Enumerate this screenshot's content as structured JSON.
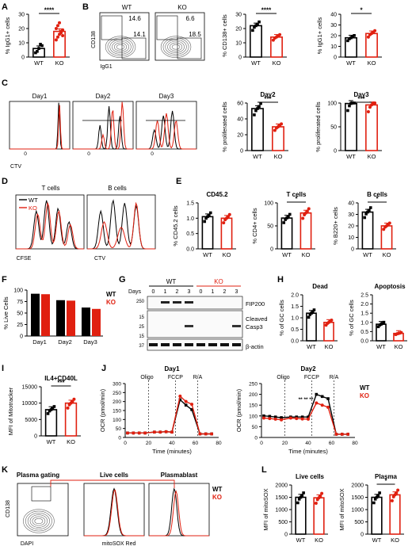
{
  "colors": {
    "wt": "#000000",
    "ko": "#e02010",
    "grey": "#888888"
  },
  "panels": {
    "A": {
      "letter": "A",
      "ylabel": "% IgG1+ cells",
      "sig": "****",
      "categories": [
        "WT",
        "KO"
      ],
      "means": [
        6,
        18
      ],
      "ylim": [
        0,
        30
      ],
      "ticks": [
        "0",
        "10",
        "20",
        "30"
      ],
      "points": [
        [
          3,
          4,
          6,
          9,
          8
        ],
        [
          12,
          14,
          16,
          18,
          19,
          20,
          22,
          24,
          17,
          15
        ]
      ]
    },
    "B": {
      "letter": "B",
      "flow": {
        "wt_title": "WT",
        "ko_title": "KO",
        "ylabel": "CD138",
        "xlabel": "IgG1",
        "wt_q1": "14.6",
        "wt_q2": "14.1",
        "ko_q1": "6.6",
        "ko_q2": "18.5"
      },
      "cd138": {
        "ylabel": "% CD138+ cells",
        "sig": "****",
        "categories": [
          "WT",
          "KO"
        ],
        "means": [
          22,
          14
        ],
        "ylim": [
          0,
          30
        ],
        "ticks": [
          "0",
          "10",
          "20",
          "30"
        ]
      },
      "igg1": {
        "ylabel": "% IgG1+ cells",
        "sig": "*",
        "categories": [
          "WT",
          "KO"
        ],
        "means": [
          18,
          22
        ],
        "ylim": [
          0,
          40
        ],
        "ticks": [
          "0",
          "10",
          "20",
          "30",
          "40"
        ]
      }
    },
    "C": {
      "letter": "C",
      "days": [
        "Day1",
        "Day2",
        "Day3"
      ],
      "xlabel": "CTV",
      "zero": "0",
      "day2": {
        "title": "Day2",
        "ylabel": "% proliferated cells",
        "sig": "***",
        "categories": [
          "WT",
          "KO"
        ],
        "means": [
          53,
          30
        ],
        "ylim": [
          0,
          60
        ],
        "ticks": [
          "0",
          "20",
          "40",
          "60"
        ]
      },
      "day3": {
        "title": "Day3",
        "ylabel": "% proliferated cells",
        "sig": "***",
        "categories": [
          "WT",
          "KO"
        ],
        "means": [
          99,
          96
        ],
        "ylim": [
          0,
          100
        ],
        "ticks": [
          "0",
          "50",
          "100"
        ]
      }
    },
    "D": {
      "letter": "D",
      "titles": [
        "T cells",
        "B cells"
      ],
      "legend": [
        "WT",
        "KO"
      ],
      "xlabels": [
        "CFSE",
        "CTV"
      ],
      "zero": "0"
    },
    "E": {
      "letter": "E",
      "cd452": {
        "title": "CD45.2",
        "ylabel": "% CD45.2 cells",
        "categories": [
          "WT",
          "KO"
        ],
        "means": [
          1.05,
          1.0
        ],
        "ylim": [
          0,
          1.5
        ],
        "ticks": [
          "0.0",
          "0.5",
          "1.0",
          "1.5"
        ]
      },
      "tcells": {
        "title": "T cells",
        "ylabel": "% CD4+ cells",
        "sig": "*",
        "categories": [
          "WT",
          "KO"
        ],
        "means": [
          67,
          78
        ],
        "ylim": [
          0,
          100
        ],
        "ticks": [
          "0",
          "50",
          "100"
        ]
      },
      "bcells": {
        "title": "B cells",
        "ylabel": "% B220+ cells",
        "sig": "*",
        "categories": [
          "WT",
          "KO"
        ],
        "means": [
          32,
          20
        ],
        "ylim": [
          0,
          40
        ],
        "ticks": [
          "0",
          "10",
          "20",
          "30",
          "40"
        ]
      }
    },
    "F": {
      "letter": "F",
      "ylabel": "% Live Cells",
      "legend": [
        "WT",
        "KO"
      ],
      "categories": [
        "Day1",
        "Day2",
        "Day3"
      ],
      "ylim": [
        0,
        100
      ],
      "ticks": [
        "0",
        "25",
        "50",
        "75",
        "100"
      ],
      "series": [
        {
          "name": "WT",
          "values": [
            92,
            78,
            62
          ]
        },
        {
          "name": "KO",
          "values": [
            91,
            77,
            59
          ]
        }
      ]
    },
    "G": {
      "letter": "G",
      "groups": [
        "WT",
        "KO"
      ],
      "days_label": "Days",
      "lanes": [
        "0",
        "1",
        "2",
        "3",
        "0",
        "1",
        "2",
        "3"
      ],
      "markers": [
        "250",
        "15",
        "25",
        "15",
        "37"
      ],
      "bands": [
        "FIP200",
        "Cleaved",
        "Casp3",
        "β-actin"
      ]
    },
    "H": {
      "letter": "H",
      "dead": {
        "title": "Dead",
        "ylabel": "% of GC cells",
        "categories": [
          "WT",
          "KO"
        ],
        "means": [
          1.2,
          0.8
        ],
        "ylim": [
          0,
          2.0
        ],
        "ticks": [
          "0.0",
          "0.5",
          "1.0",
          "1.5",
          "2.0"
        ]
      },
      "apoptosis": {
        "title": "Apoptosis",
        "ylabel": "% of GC cells",
        "categories": [
          "WT",
          "KO"
        ],
        "means": [
          0.9,
          0.4
        ],
        "ylim": [
          0,
          2.5
        ],
        "ticks": [
          "0.0",
          "0.5",
          "1.0",
          "1.5",
          "2.0",
          "2.5"
        ]
      }
    },
    "I": {
      "letter": "I",
      "title": "IL4+CD40L",
      "ylabel": "MFI of Mitotracker",
      "sig": "***",
      "categories": [
        "WT",
        "KO"
      ],
      "means": [
        8000,
        10000
      ],
      "ylim": [
        0,
        15000
      ],
      "ticks": [
        "0",
        "5000",
        "10000",
        "15000"
      ]
    },
    "J": {
      "letter": "J",
      "ylabel": "OCR (pmol/min)",
      "xlabel": "Time (minutes)",
      "annotations": [
        "Oligo",
        "FCCP",
        "R/A"
      ],
      "legend": [
        "WT",
        "KO"
      ],
      "xticks": [
        "0",
        "20",
        "40",
        "60",
        "80"
      ],
      "sig_day2": "** ** **",
      "day1": {
        "title": "Day1",
        "ylim": [
          0,
          300
        ],
        "yticks": [
          "0",
          "50",
          "100",
          "150",
          "200",
          "250",
          "300"
        ],
        "x": [
          2,
          7,
          12,
          17,
          25,
          30,
          35,
          40,
          47,
          52,
          57,
          64,
          69,
          74
        ],
        "wt": [
          25,
          25,
          25,
          25,
          30,
          30,
          32,
          30,
          210,
          180,
          155,
          20,
          20,
          20
        ],
        "ko": [
          25,
          25,
          25,
          25,
          30,
          30,
          32,
          30,
          230,
          200,
          185,
          20,
          20,
          20
        ]
      },
      "day2": {
        "title": "Day2",
        "ylim": [
          0,
          250
        ],
        "yticks": [
          "0",
          "50",
          "100",
          "150",
          "200",
          "250"
        ],
        "x": [
          2,
          7,
          12,
          17,
          25,
          30,
          35,
          40,
          47,
          52,
          57,
          64,
          69,
          74
        ],
        "wt": [
          100,
          98,
          95,
          92,
          95,
          95,
          95,
          95,
          200,
          190,
          180,
          15,
          15,
          15
        ],
        "ko": [
          90,
          88,
          85,
          82,
          90,
          88,
          86,
          85,
          160,
          150,
          140,
          15,
          15,
          15
        ]
      }
    },
    "K": {
      "letter": "K",
      "titles": [
        "Plasma gating",
        "Live cells",
        "Plasmablast"
      ],
      "ylabel": "CD138",
      "xlabel1": "DAPI",
      "xlabel2": "mitoSOX Red",
      "legend": [
        "WT",
        "KO"
      ]
    },
    "L": {
      "letter": "L",
      "live": {
        "title": "Live cells",
        "ylabel": "MFI of mitoSOX",
        "categories": [
          "WT",
          "KO"
        ],
        "means": [
          1500,
          1480
        ],
        "ylim": [
          0,
          2000
        ],
        "ticks": [
          "0",
          "500",
          "1000",
          "1500",
          "2000"
        ]
      },
      "plasma": {
        "title": "Plasma",
        "ylabel": "MFI of mitoSOX",
        "sig": "*",
        "categories": [
          "WT",
          "KO"
        ],
        "means": [
          1500,
          1600
        ],
        "ylim": [
          0,
          2000
        ],
        "ticks": [
          "0",
          "500",
          "1000",
          "1500",
          "2000"
        ]
      }
    }
  },
  "chart_data": [
    {
      "type": "bar",
      "panel": "A",
      "categories": [
        "WT",
        "KO"
      ],
      "values": [
        6,
        18
      ],
      "ylabel": "% IgG1+ cells",
      "ylim": [
        0,
        30
      ]
    },
    {
      "type": "bar",
      "panel": "B-CD138",
      "categories": [
        "WT",
        "KO"
      ],
      "values": [
        22,
        14
      ],
      "ylabel": "% CD138+ cells",
      "ylim": [
        0,
        30
      ]
    },
    {
      "type": "bar",
      "panel": "B-IgG1",
      "categories": [
        "WT",
        "KO"
      ],
      "values": [
        18,
        22
      ],
      "ylabel": "% IgG1+ cells",
      "ylim": [
        0,
        40
      ]
    },
    {
      "type": "bar",
      "panel": "C-Day2",
      "categories": [
        "WT",
        "KO"
      ],
      "values": [
        53,
        30
      ],
      "ylabel": "% proliferated cells",
      "ylim": [
        0,
        60
      ]
    },
    {
      "type": "bar",
      "panel": "C-Day3",
      "categories": [
        "WT",
        "KO"
      ],
      "values": [
        99,
        96
      ],
      "ylabel": "% proliferated cells",
      "ylim": [
        0,
        100
      ]
    },
    {
      "type": "bar",
      "panel": "E-CD45.2",
      "categories": [
        "WT",
        "KO"
      ],
      "values": [
        1.05,
        1.0
      ],
      "ylabel": "% CD45.2 cells",
      "ylim": [
        0,
        1.5
      ]
    },
    {
      "type": "bar",
      "panel": "E-T",
      "categories": [
        "WT",
        "KO"
      ],
      "values": [
        67,
        78
      ],
      "ylabel": "% CD4+ cells",
      "ylim": [
        0,
        100
      ]
    },
    {
      "type": "bar",
      "panel": "E-B",
      "categories": [
        "WT",
        "KO"
      ],
      "values": [
        32,
        20
      ],
      "ylabel": "% B220+ cells",
      "ylim": [
        0,
        40
      ]
    },
    {
      "type": "bar",
      "panel": "F",
      "categories": [
        "Day1",
        "Day2",
        "Day3"
      ],
      "series": [
        {
          "name": "WT",
          "values": [
            92,
            78,
            62
          ]
        },
        {
          "name": "KO",
          "values": [
            91,
            77,
            59
          ]
        }
      ],
      "ylabel": "% Live Cells",
      "ylim": [
        0,
        100
      ]
    },
    {
      "type": "bar",
      "panel": "H-Dead",
      "categories": [
        "WT",
        "KO"
      ],
      "values": [
        1.2,
        0.8
      ],
      "ylabel": "% of GC cells",
      "ylim": [
        0,
        2.0
      ]
    },
    {
      "type": "bar",
      "panel": "H-Apoptosis",
      "categories": [
        "WT",
        "KO"
      ],
      "values": [
        0.9,
        0.4
      ],
      "ylabel": "% of GC cells",
      "ylim": [
        0,
        2.5
      ]
    },
    {
      "type": "bar",
      "panel": "I",
      "categories": [
        "WT",
        "KO"
      ],
      "values": [
        8000,
        10000
      ],
      "ylabel": "MFI of Mitotracker",
      "ylim": [
        0,
        15000
      ]
    },
    {
      "type": "line",
      "panel": "J-Day1",
      "x": [
        2,
        7,
        12,
        17,
        25,
        30,
        35,
        40,
        47,
        52,
        57,
        64,
        69,
        74
      ],
      "series": [
        {
          "name": "WT",
          "values": [
            25,
            25,
            25,
            25,
            30,
            30,
            32,
            30,
            210,
            180,
            155,
            20,
            20,
            20
          ]
        },
        {
          "name": "KO",
          "values": [
            25,
            25,
            25,
            25,
            30,
            30,
            32,
            30,
            230,
            200,
            185,
            20,
            20,
            20
          ]
        }
      ],
      "xlabel": "Time (minutes)",
      "ylabel": "OCR (pmol/min)",
      "ylim": [
        0,
        300
      ]
    },
    {
      "type": "line",
      "panel": "J-Day2",
      "x": [
        2,
        7,
        12,
        17,
        25,
        30,
        35,
        40,
        47,
        52,
        57,
        64,
        69,
        74
      ],
      "series": [
        {
          "name": "WT",
          "values": [
            100,
            98,
            95,
            92,
            95,
            95,
            95,
            95,
            200,
            190,
            180,
            15,
            15,
            15
          ]
        },
        {
          "name": "KO",
          "values": [
            90,
            88,
            85,
            82,
            90,
            88,
            86,
            85,
            160,
            150,
            140,
            15,
            15,
            15
          ]
        }
      ],
      "xlabel": "Time (minutes)",
      "ylabel": "OCR (pmol/min)",
      "ylim": [
        0,
        250
      ]
    },
    {
      "type": "bar",
      "panel": "L-Live",
      "categories": [
        "WT",
        "KO"
      ],
      "values": [
        1500,
        1480
      ],
      "ylabel": "MFI of mitoSOX",
      "ylim": [
        0,
        2000
      ]
    },
    {
      "type": "bar",
      "panel": "L-Plasma",
      "categories": [
        "WT",
        "KO"
      ],
      "values": [
        1500,
        1600
      ],
      "ylabel": "MFI of mitoSOX",
      "ylim": [
        0,
        2000
      ]
    }
  ]
}
